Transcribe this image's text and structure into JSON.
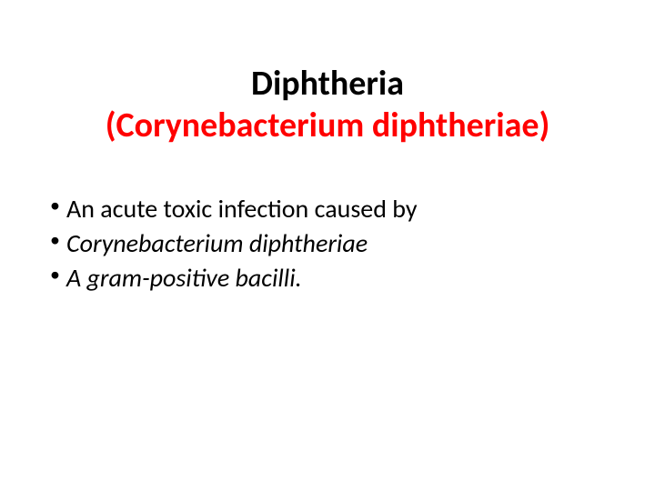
{
  "title": {
    "line1": "Diphtheria",
    "line2": "(Corynebacterium diphtheriae)",
    "line1_color": "#000000",
    "line2_color": "#ff0000",
    "fontsize": 38,
    "font_weight": "bold"
  },
  "bullets": [
    {
      "text": "An acute toxic infection caused by",
      "italic": false
    },
    {
      "text": "Corynebacterium diphtheriae",
      "italic": true
    },
    {
      "text": "A gram-positive bacilli.",
      "italic": true
    }
  ],
  "style": {
    "background_color": "#ffffff",
    "body_text_color": "#000000",
    "body_fontsize": 28,
    "bullet_marker": "•"
  }
}
